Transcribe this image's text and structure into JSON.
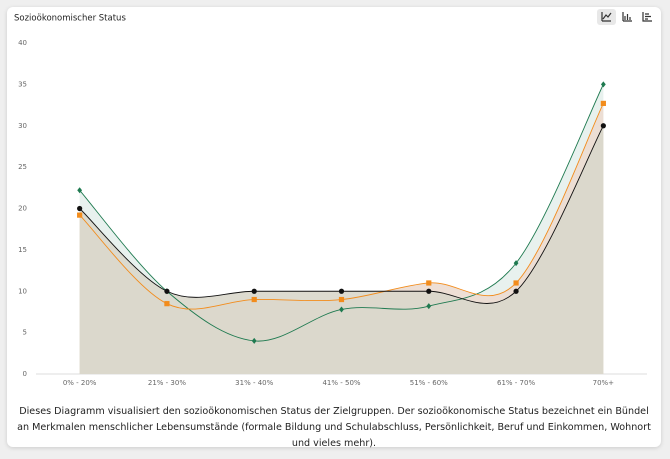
{
  "chart_data": {
    "type": "line",
    "title": "Sozioökonomischer Status",
    "categories": [
      "0% - 20%",
      "21% - 30%",
      "31% - 40%",
      "41% - 50%",
      "51% - 60%",
      "61% - 70%",
      "70%+"
    ],
    "series": [
      {
        "color": "#1f7a50",
        "fill": "#e6f0ec",
        "marker": "diamond",
        "values": [
          22.2,
          10,
          4,
          7.8,
          8.2,
          13.4,
          35
        ]
      },
      {
        "color": "#f28c1c",
        "fill": "#ecdcd0",
        "marker": "square",
        "values": [
          19.2,
          8.5,
          9,
          9,
          11,
          11,
          32.7
        ]
      },
      {
        "color": "#111111",
        "fill": "#d9d7cb",
        "marker": "circle",
        "values": [
          20,
          10,
          10,
          10,
          10,
          10,
          30
        ]
      }
    ],
    "area": true,
    "smooth": true,
    "ylim": [
      0,
      40
    ],
    "yticks": [
      0,
      5,
      10,
      15,
      20,
      25,
      30,
      35,
      40
    ],
    "grid": false
  },
  "description": "Dieses Diagramm visualisiert den sozioökonomischen Status der Zielgruppen. Der sozioökonomische Status bezeichnet ein Bündel an Merkmalen menschlicher Lebensumstände (formale Bildung und Schulabschluss, Persönlichkeit, Beruf und Einkommen, Wohnort und vieles mehr)."
}
